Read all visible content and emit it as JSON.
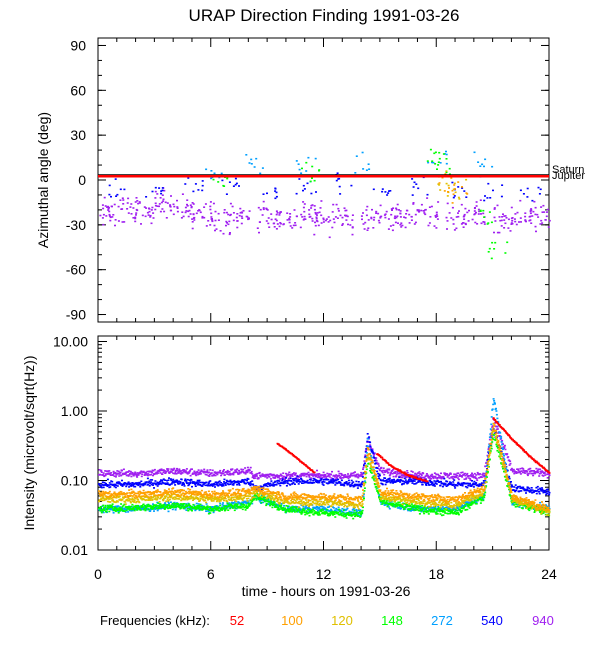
{
  "chart_data": [
    {
      "type": "scatter",
      "title": "URAP Direction Finding  1991-03-26",
      "xlabel": "time - hours on 1991-03-26",
      "ylabel": "Azimuthal angle (deg)",
      "xlim": [
        0,
        24
      ],
      "ylim": [
        -95,
        95
      ],
      "x_ticks": [
        0,
        6,
        12,
        18,
        24
      ],
      "y_ticks": [
        90,
        60,
        30,
        0,
        -30,
        -60,
        -90
      ],
      "reference_lines": [
        {
          "name": "Saturn",
          "value": 3,
          "color": "#000000"
        },
        {
          "name": "Jupiter",
          "value": 2.5,
          "color": "#ff0000"
        }
      ],
      "reference_labels": [
        "Saturn",
        "Jupiter"
      ],
      "series": [
        {
          "name": "940",
          "color": "#a020f0",
          "description_points": [
            [
              0.5,
              -22
            ],
            [
              1.5,
              -20
            ],
            [
              2.5,
              -18
            ],
            [
              3.5,
              -15
            ],
            [
              4.5,
              -20
            ],
            [
              5.5,
              -22
            ],
            [
              6.5,
              -25
            ],
            [
              7.5,
              -24
            ],
            [
              9,
              -24
            ],
            [
              10,
              -25
            ],
            [
              11,
              -22
            ],
            [
              12,
              -26
            ],
            [
              13,
              -24
            ],
            [
              14.5,
              -25
            ],
            [
              15.5,
              -23
            ],
            [
              16.5,
              -24
            ],
            [
              17.5,
              -22
            ],
            [
              19,
              -25
            ],
            [
              20,
              -24
            ],
            [
              21.5,
              -28
            ],
            [
              22.5,
              -25
            ],
            [
              23.5,
              -24
            ]
          ]
        },
        {
          "name": "540",
          "color": "#0000ff",
          "description_points": [
            [
              1,
              -8
            ],
            [
              3,
              -5
            ],
            [
              5,
              -3
            ],
            [
              7,
              -2
            ],
            [
              9,
              -6
            ],
            [
              11,
              -4
            ],
            [
              13,
              -2
            ],
            [
              15,
              -5
            ],
            [
              17,
              -3
            ],
            [
              19,
              -6
            ],
            [
              21,
              -10
            ],
            [
              23,
              -8
            ]
          ]
        },
        {
          "name": "272",
          "color": "#00a0ff",
          "description_points": [
            [
              6.2,
              5
            ],
            [
              8.2,
              10
            ],
            [
              11,
              8
            ],
            [
              14,
              10
            ],
            [
              18,
              15
            ],
            [
              20.5,
              10
            ]
          ]
        },
        {
          "name": "148",
          "color": "#00ff00",
          "description_points": [
            [
              6.3,
              2
            ],
            [
              11.3,
              4
            ],
            [
              18,
              18
            ],
            [
              18.2,
              10
            ],
            [
              21.2,
              -45
            ],
            [
              20.8,
              -25
            ]
          ]
        },
        {
          "name": "120",
          "color": "#e0c000",
          "description_points": [
            [
              18.5,
              0
            ],
            [
              19,
              -5
            ]
          ]
        },
        {
          "name": "100",
          "color": "#ffa000",
          "description_points": [
            [
              18.6,
              -2
            ],
            [
              19.1,
              -8
            ]
          ]
        },
        {
          "name": "52",
          "color": "#ff0000",
          "description_points": []
        }
      ]
    },
    {
      "type": "scatter",
      "xlabel": "time - hours on 1991-03-26",
      "ylabel": "Intensity (microvolt/sqrt(Hz))",
      "yscale": "log",
      "xlim": [
        0,
        24
      ],
      "ylim": [
        0.01,
        12
      ],
      "x_ticks": [
        0,
        6,
        12,
        18,
        24
      ],
      "x_tick_labels": [
        "0",
        "6",
        "12",
        "18",
        "24"
      ],
      "y_ticks": [
        10,
        1,
        0.1,
        0.01
      ],
      "y_tick_labels": [
        "10.00",
        "1.00",
        "0.10",
        "0.01"
      ],
      "series": [
        {
          "name": "940",
          "color": "#a020f0",
          "x": [
            0,
            2,
            4,
            6,
            8,
            8.3,
            10,
            12,
            14,
            14.3,
            15,
            17,
            19,
            20.5,
            21,
            22,
            24
          ],
          "y": [
            0.13,
            0.13,
            0.14,
            0.13,
            0.14,
            0.12,
            0.12,
            0.12,
            0.12,
            0.4,
            0.14,
            0.12,
            0.12,
            0.12,
            0.8,
            0.14,
            0.13
          ]
        },
        {
          "name": "540",
          "color": "#0000ff",
          "x": [
            0,
            2,
            4,
            6,
            8,
            8.3,
            10,
            12,
            14,
            14.3,
            15,
            17,
            19,
            20.5,
            21,
            22,
            24
          ],
          "y": [
            0.09,
            0.09,
            0.1,
            0.09,
            0.1,
            0.08,
            0.1,
            0.1,
            0.09,
            0.45,
            0.1,
            0.1,
            0.09,
            0.09,
            0.6,
            0.08,
            0.07
          ]
        },
        {
          "name": "272",
          "color": "#00a0ff",
          "x": [
            0,
            2,
            4,
            6,
            8,
            8.3,
            10,
            12,
            14,
            14.3,
            15,
            17,
            19,
            20.5,
            21,
            22,
            24
          ],
          "y": [
            0.04,
            0.04,
            0.045,
            0.04,
            0.05,
            0.06,
            0.04,
            0.04,
            0.035,
            0.35,
            0.05,
            0.04,
            0.04,
            0.06,
            1.6,
            0.05,
            0.04
          ]
        },
        {
          "name": "148",
          "color": "#00ff00",
          "x": [
            0,
            2,
            4,
            6,
            8,
            8.3,
            10,
            12,
            14,
            14.3,
            15,
            17,
            19,
            20.5,
            21,
            22,
            24
          ],
          "y": [
            0.04,
            0.042,
            0.045,
            0.04,
            0.045,
            0.06,
            0.04,
            0.035,
            0.033,
            0.2,
            0.05,
            0.04,
            0.035,
            0.06,
            0.5,
            0.05,
            0.035
          ]
        },
        {
          "name": "120",
          "color": "#e0c000",
          "x": [
            0,
            2,
            4,
            6,
            8,
            8.3,
            10,
            12,
            14,
            14.3,
            15,
            17,
            19,
            20.5,
            21,
            22,
            24
          ],
          "y": [
            0.055,
            0.055,
            0.06,
            0.055,
            0.06,
            0.07,
            0.05,
            0.05,
            0.045,
            0.25,
            0.06,
            0.05,
            0.045,
            0.07,
            0.6,
            0.055,
            0.035
          ]
        },
        {
          "name": "100",
          "color": "#ffa000",
          "x": [
            0,
            2,
            4,
            6,
            8,
            8.3,
            10,
            12,
            14,
            14.3,
            15,
            17,
            19,
            20.5,
            21,
            22,
            24
          ],
          "y": [
            0.065,
            0.065,
            0.07,
            0.065,
            0.07,
            0.08,
            0.06,
            0.06,
            0.055,
            0.3,
            0.07,
            0.06,
            0.055,
            0.08,
            0.7,
            0.06,
            0.04
          ]
        },
        {
          "name": "52",
          "color": "#ff0000",
          "x": [
            9.5,
            10.5,
            11.5,
            14.8,
            15.5,
            16.5,
            17.5,
            21,
            22,
            23,
            24
          ],
          "y": [
            0.35,
            0.22,
            0.13,
            0.25,
            0.17,
            0.12,
            0.1,
            0.8,
            0.4,
            0.22,
            0.13
          ]
        }
      ]
    }
  ],
  "legend": {
    "label": "Frequencies (kHz):",
    "items": [
      {
        "name": "52",
        "color": "#ff0000"
      },
      {
        "name": "100",
        "color": "#ffa000"
      },
      {
        "name": "120",
        "color": "#e0c000"
      },
      {
        "name": "148",
        "color": "#00ff00"
      },
      {
        "name": "272",
        "color": "#00a0ff"
      },
      {
        "name": "540",
        "color": "#0000ff"
      },
      {
        "name": "940",
        "color": "#a020f0"
      }
    ]
  }
}
